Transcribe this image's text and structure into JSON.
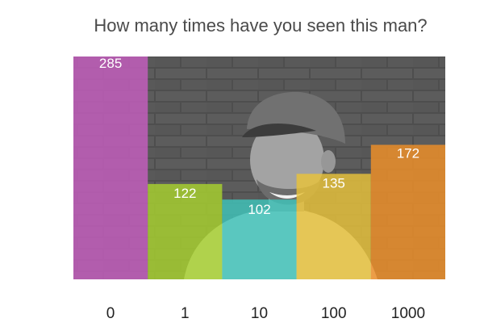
{
  "chart_data": {
    "type": "bar",
    "title": "How many times have you seen this man?",
    "xlabel": "",
    "ylabel": "",
    "categories": [
      "0",
      "1",
      "10",
      "100",
      "1000"
    ],
    "values": [
      285,
      122,
      102,
      135,
      172
    ],
    "ylim": [
      0,
      285
    ],
    "grid": false,
    "legend": "none",
    "colors": [
      "#c65ec0",
      "#a8d22e",
      "#3fc4bb",
      "#e9c33a",
      "#f19128"
    ],
    "background": "grayscale photo of a smiling man in a baseball cap and hoodie in front of a brick wall",
    "data_labels": true
  }
}
